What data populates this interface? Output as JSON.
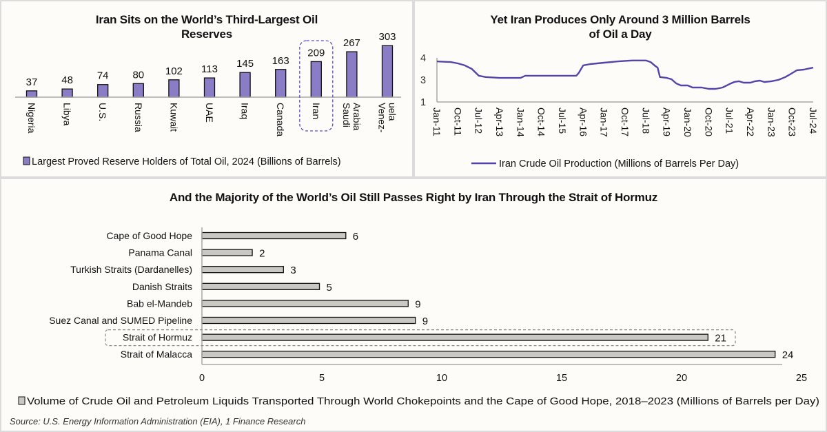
{
  "chart_data": [
    {
      "type": "bar",
      "title": "Iran Sits on the World’s Third-Largest Oil Reserves",
      "title_lines": [
        "Iran Sits on the World’s Third-Largest Oil",
        "Reserves"
      ],
      "categories": [
        "Nigeria",
        "Libya",
        "U.S.",
        "Russia",
        "Kuwait",
        "UAE",
        "Iraq",
        "Canada",
        "Iran",
        "Saudi Arabia",
        "Venezuela"
      ],
      "category_label_lines": [
        [
          "Nigeria"
        ],
        [
          "Libya"
        ],
        [
          "U.S."
        ],
        [
          "Russia"
        ],
        [
          "Kuwait"
        ],
        [
          "UAE"
        ],
        [
          "Iraq"
        ],
        [
          "Canada"
        ],
        [
          "Iran"
        ],
        [
          "Saudi",
          "Arabia"
        ],
        [
          "Venez-",
          "uela"
        ]
      ],
      "values": [
        37,
        48,
        74,
        80,
        102,
        113,
        145,
        163,
        209,
        267,
        303
      ],
      "data_labels": [
        "37",
        "48",
        "74",
        "80",
        "102",
        "113",
        "145",
        "163",
        "209",
        "267",
        "303"
      ],
      "highlight": "Iran",
      "legend": "Largest Proved Reserve Holders of Total Oil, 2024 (Billions of Barrels)",
      "legend_position": "bottom",
      "ylim": [
        0,
        320
      ],
      "xlabel": "",
      "ylabel": "",
      "grid": false,
      "colors": {
        "bar": "#8a7dc6",
        "outline": "#111111",
        "highlight_box": "#5b4bc4"
      }
    },
    {
      "type": "line",
      "title": "Yet Iran Produces Only Around 3 Million Barrels of Oil a Day",
      "title_lines": [
        "Yet Iran Produces Only Around 3 Million Barrels",
        "of Oil a Day"
      ],
      "x_tick_labels": [
        "Jan-11",
        "Oct-11",
        "Jul-12",
        "Apr-13",
        "Jan-14",
        "Oct-14",
        "Jul-15",
        "Apr-16",
        "Jan-17",
        "Oct-17",
        "Jul-18",
        "Apr-19",
        "Jan-20",
        "Oct-20",
        "Jul-21",
        "Apr-22",
        "Jan-23",
        "Oct-23",
        "Jul-24"
      ],
      "x_range_months_from_jan_2011": [
        0,
        162
      ],
      "y_tick_labels": [
        "1",
        "3",
        "4"
      ],
      "series": [
        {
          "name": "Iran Crude Oil Production (Millions of Barrels Per Day)",
          "x_months_from_jan_2011": [
            0,
            6,
            9,
            12,
            15,
            18,
            21,
            27,
            36,
            38,
            60,
            61,
            63,
            66,
            72,
            78,
            84,
            90,
            92,
            94,
            95,
            96,
            99,
            101,
            103,
            105,
            108,
            110,
            114,
            117,
            120,
            123,
            126,
            128,
            130,
            132,
            135,
            137,
            139,
            141,
            144,
            147,
            150,
            152,
            155,
            158,
            162
          ],
          "values": [
            3.84,
            3.81,
            3.75,
            3.66,
            3.5,
            3.19,
            3.13,
            3.09,
            3.09,
            3.19,
            3.19,
            3.31,
            3.66,
            3.72,
            3.78,
            3.84,
            3.88,
            3.88,
            3.81,
            3.63,
            3.56,
            3.13,
            3.09,
            3.03,
            2.69,
            2.5,
            2.5,
            2.31,
            2.31,
            2.19,
            2.19,
            2.31,
            2.63,
            2.81,
            2.88,
            2.75,
            2.75,
            2.88,
            2.94,
            2.81,
            2.88,
            3.0,
            3.13,
            3.25,
            3.44,
            3.47,
            3.56
          ]
        }
      ],
      "legend": "Iran Crude Oil Production (Millions of Barrels Per Day)",
      "legend_position": "bottom",
      "xlabel": "",
      "ylabel": "",
      "grid": false,
      "colors": {
        "line": "#5443a8"
      }
    },
    {
      "type": "bar",
      "orientation": "horizontal",
      "title": "And the Majority of the World’s Oil Still Passes Right by Iran Through the Strait of Hormuz",
      "categories": [
        "Cape of Good Hope",
        "Panama Canal",
        "Turkish Straits (Dardanelles)",
        "Danish Straits",
        "Bab el-Mandeb",
        "Suez Canal and SUMED Pipeline",
        "Strait of Hormuz",
        "Strait of Malacca"
      ],
      "values": [
        6.0,
        2.1,
        3.4,
        4.9,
        8.6,
        8.9,
        21.1,
        23.9
      ],
      "data_labels": [
        "6",
        "2",
        "3",
        "5",
        "9",
        "9",
        "21",
        "24"
      ],
      "highlight": "Strait of Hormuz",
      "x_tick_labels": [
        "0",
        "5",
        "10",
        "15",
        "20",
        "25"
      ],
      "xlim": [
        0,
        25
      ],
      "legend": "Volume of Crude Oil and Petroleum Liquids Transported Through World Chokepoints and the Cape of Good Hope, 2018–2023 (Millions of Barrels per Day)",
      "legend_position": "bottom",
      "xlabel": "",
      "ylabel": "",
      "grid": false,
      "colors": {
        "bar": "#c9c8c2",
        "outline": "#111111",
        "highlight_box": "#8a8a8a"
      }
    }
  ],
  "footer": {
    "source": "Source: U.S. Energy Information Administration (EIA), 1 Finance Research"
  }
}
